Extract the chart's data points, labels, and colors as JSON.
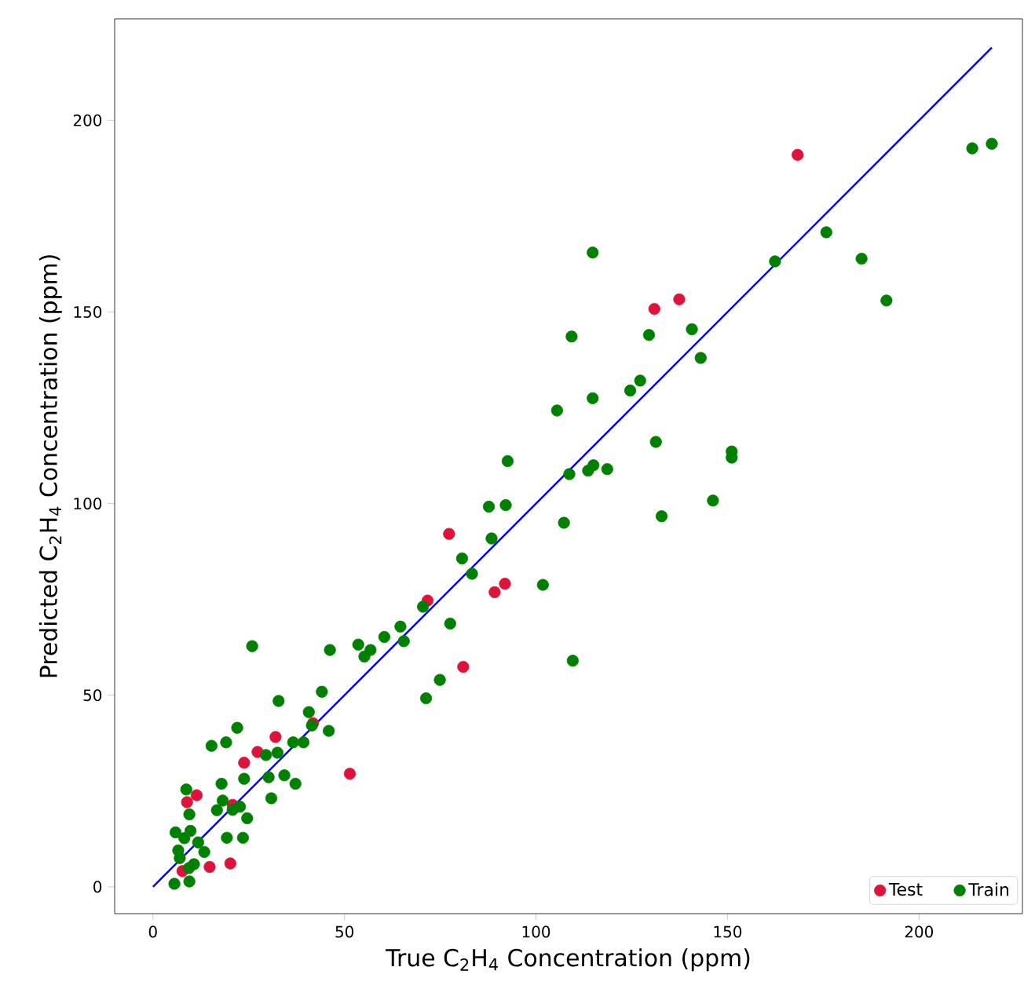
{
  "chart_data": {
    "type": "scatter",
    "xlabel": "True C$_{2}$H$_{4}$ Concentration (ppm)",
    "ylabel": "Predicted C$_{2}$H$_{4}$ Concentration (ppm)",
    "xlim": [
      -10,
      227
    ],
    "ylim": [
      -7,
      226.5
    ],
    "xticks": [
      0,
      50,
      100,
      150,
      200
    ],
    "yticks": [
      0,
      50,
      100,
      150,
      200
    ],
    "grid": false,
    "legend": "bottom right",
    "series": [
      {
        "name": "Test",
        "marker": "circle",
        "color": "#dc143c",
        "x": [
          71.7,
          41.8,
          32.0,
          27.3,
          23.8,
          11.4,
          8.9,
          20.2,
          14.8,
          51.4,
          7.7,
          20.8,
          77.3,
          89.2,
          91.9,
          81.0,
          130.9,
          137.4,
          168.3
        ],
        "values": [
          74.7,
          42.7,
          39.1,
          35.2,
          32.4,
          23.9,
          22.1,
          6.1,
          5.2,
          29.5,
          4.1,
          21.4,
          92.1,
          76.9,
          79.1,
          57.4,
          150.8,
          153.3,
          191.0
        ]
      },
      {
        "name": "Train",
        "marker": "circle",
        "color": "#008000",
        "x": [
          25.9,
          46.2,
          53.6,
          56.8,
          55.2,
          60.4,
          64.6,
          65.5,
          70.5,
          77.6,
          74.9,
          71.3,
          44.1,
          32.8,
          40.7,
          22.0,
          15.3,
          19.1,
          36.6,
          39.3,
          41.5,
          45.9,
          29.5,
          32.5,
          17.9,
          23.8,
          30.2,
          34.3,
          37.2,
          30.9,
          8.7,
          18.2,
          16.7,
          20.8,
          22.7,
          24.6,
          9.5,
          5.9,
          9.8,
          8.2,
          11.8,
          19.3,
          23.5,
          6.6,
          7.0,
          13.4,
          10.7,
          9.4,
          5.6,
          9.5,
          92.6,
          108.7,
          113.6,
          115.0,
          118.6,
          87.7,
          92.1,
          107.3,
          88.4,
          80.7,
          83.3,
          101.8,
          109.6,
          114.8,
          162.4,
          109.3,
          129.5,
          140.7,
          143.0,
          127.2,
          124.6,
          114.8,
          105.5,
          131.3,
          151.1,
          151.1,
          146.2,
          132.8,
          213.9,
          219.0,
          175.8,
          185.0,
          191.5
        ],
        "values": [
          62.8,
          61.8,
          63.2,
          61.8,
          60.1,
          65.2,
          67.9,
          64.1,
          73.1,
          68.7,
          54.0,
          49.2,
          50.9,
          48.5,
          45.6,
          41.5,
          36.8,
          37.7,
          37.7,
          37.7,
          42.1,
          40.7,
          34.4,
          35.0,
          26.9,
          28.2,
          28.6,
          29.1,
          26.9,
          23.1,
          25.4,
          22.5,
          20.0,
          20.1,
          20.9,
          17.9,
          18.9,
          14.2,
          14.6,
          12.7,
          11.6,
          12.8,
          12.8,
          9.5,
          7.5,
          9.1,
          5.9,
          4.9,
          0.8,
          1.4,
          111.1,
          107.7,
          108.6,
          110.0,
          109.0,
          99.2,
          99.6,
          95.0,
          90.9,
          85.7,
          81.7,
          78.8,
          59.0,
          165.5,
          163.2,
          143.6,
          144.0,
          145.5,
          138.0,
          132.1,
          129.5,
          127.5,
          124.3,
          116.1,
          113.6,
          112.0,
          100.8,
          96.7,
          192.7,
          193.9,
          170.8,
          163.9,
          153.0
        ]
      },
      {
        "type": "line",
        "marker": "none",
        "color": "#0000ff",
        "x": [
          0,
          219
        ],
        "values": [
          0,
          219
        ]
      }
    ]
  }
}
